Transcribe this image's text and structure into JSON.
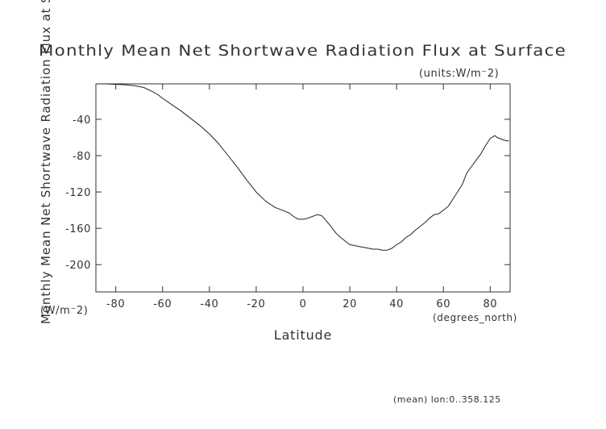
{
  "chart_data": {
    "type": "line",
    "title": "Monthly Mean Net Shortwave Radiation Flux at Surface",
    "units_note": "(units:W/m⁻2)",
    "ylabel": "Monthly Mean Net Shortwave Radiation Flux at Surface",
    "yunit": "(W/m⁻2)",
    "xlabel": "Latitude",
    "xunit": "(degrees_north)",
    "footer": "(mean) lon:0..358.125",
    "xlim": [
      -88.5,
      88.5
    ],
    "ylim": [
      -230,
      -1
    ],
    "xticks": [
      -80,
      -60,
      -40,
      -20,
      0,
      20,
      40,
      60,
      80
    ],
    "yticks": [
      -40,
      -80,
      -120,
      -160,
      -200
    ],
    "grid": false,
    "series": [
      {
        "x": [
          -88,
          -84,
          -80,
          -76,
          -72,
          -68,
          -64,
          -62,
          -60,
          -56,
          -52,
          -48,
          -44,
          -40,
          -36,
          -32,
          -28,
          -24,
          -20,
          -16,
          -12,
          -8,
          -6,
          -4,
          -2,
          0,
          2,
          4,
          6,
          8,
          10,
          12,
          14,
          16,
          18,
          20,
          22,
          24,
          26,
          28,
          30,
          32,
          34,
          36,
          38,
          40,
          42,
          44,
          46,
          48,
          50,
          52,
          54,
          56,
          58,
          60,
          62,
          64,
          66,
          68,
          70,
          72,
          74,
          76,
          78,
          80,
          82,
          83,
          84,
          86,
          88
        ],
        "y": [
          -1,
          -1,
          -1.5,
          -2,
          -3,
          -5,
          -10,
          -13,
          -17,
          -24,
          -31,
          -39,
          -47,
          -56,
          -67,
          -80,
          -93,
          -107,
          -120,
          -130,
          -137,
          -141,
          -143,
          -147,
          -150,
          -150,
          -149,
          -147,
          -145,
          -146,
          -152,
          -158,
          -165,
          -170,
          -174,
          -178,
          -179,
          -180,
          -181,
          -182,
          -183,
          -183,
          -184,
          -184,
          -182,
          -178,
          -175,
          -170,
          -167,
          -162,
          -158,
          -154,
          -149,
          -145,
          -144,
          -140,
          -136,
          -128,
          -120,
          -112,
          -99,
          -92,
          -85,
          -78,
          -69,
          -61,
          -58,
          -60,
          -61,
          -63,
          -64
        ]
      }
    ]
  }
}
